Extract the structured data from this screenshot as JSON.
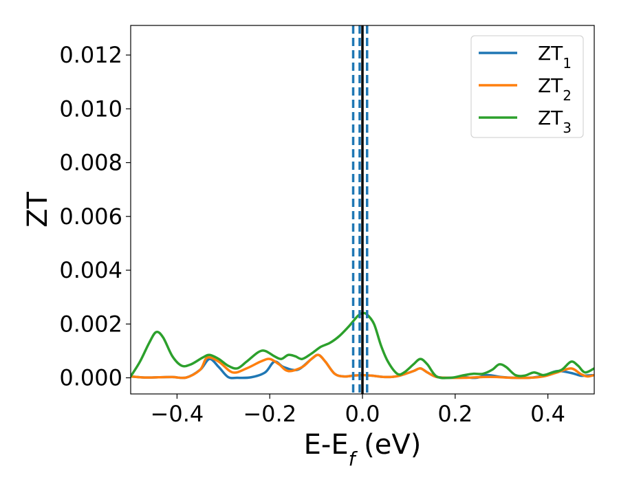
{
  "chart_data": {
    "type": "line",
    "title": "",
    "xlabel": "E-E",
    "xlabel_sub": "f",
    "xlabel_unit": " (eV)",
    "ylabel": "ZT",
    "xlim": [
      -0.5,
      0.5
    ],
    "ylim": [
      -0.0006,
      0.0131
    ],
    "xticks": [
      -0.4,
      -0.2,
      0.0,
      0.2,
      0.4
    ],
    "xtick_labels": [
      "−0.4",
      "−0.2",
      "0.0",
      "0.2",
      "0.4"
    ],
    "yticks": [
      0.0,
      0.002,
      0.004,
      0.006,
      0.008,
      0.01,
      0.012
    ],
    "ytick_labels": [
      "0.000",
      "0.002",
      "0.004",
      "0.006",
      "0.008",
      "0.010",
      "0.012"
    ],
    "grid": false,
    "legend_position": "top-right",
    "vlines": [
      {
        "x": 0.0,
        "style": "solid",
        "color": "#000000"
      },
      {
        "x": -0.02,
        "style": "dashed",
        "color": "#1f77b4"
      },
      {
        "x": -0.006,
        "style": "dashed",
        "color": "#1f77b4"
      },
      {
        "x": 0.01,
        "style": "dashed",
        "color": "#1f77b4"
      }
    ],
    "series": [
      {
        "name": "ZT",
        "name_sub": "1",
        "color": "#1f77b4",
        "points": [
          [
            -0.5,
            5e-05
          ],
          [
            -0.47,
            1e-05
          ],
          [
            -0.44,
            2e-05
          ],
          [
            -0.41,
            3e-05
          ],
          [
            -0.38,
            1e-05
          ],
          [
            -0.35,
            0.0003
          ],
          [
            -0.33,
            0.0007
          ],
          [
            -0.31,
            0.0004
          ],
          [
            -0.29,
            3e-05
          ],
          [
            -0.27,
            0.0
          ],
          [
            -0.24,
            2e-05
          ],
          [
            -0.21,
            0.0002
          ],
          [
            -0.19,
            0.0006
          ],
          [
            -0.17,
            0.0004
          ],
          [
            -0.14,
            0.0003
          ],
          [
            -0.11,
            0.0007
          ],
          [
            -0.095,
            0.00085
          ],
          [
            -0.08,
            0.0006
          ],
          [
            -0.06,
            0.00015
          ],
          [
            -0.04,
            5e-05
          ],
          [
            -0.02,
            8e-05
          ],
          [
            0.0,
            0.0001
          ],
          [
            0.02,
            8e-05
          ],
          [
            0.04,
            4e-05
          ],
          [
            0.06,
            3e-05
          ],
          [
            0.08,
            8e-05
          ],
          [
            0.11,
            0.00025
          ],
          [
            0.125,
            0.00035
          ],
          [
            0.14,
            0.0002
          ],
          [
            0.16,
            3e-05
          ],
          [
            0.19,
            0.0
          ],
          [
            0.22,
            2e-05
          ],
          [
            0.245,
            0.0
          ],
          [
            0.27,
            0.0001
          ],
          [
            0.3,
            3e-05
          ],
          [
            0.33,
            0.0
          ],
          [
            0.36,
            0.0
          ],
          [
            0.39,
            8e-05
          ],
          [
            0.42,
            0.00025
          ],
          [
            0.45,
            0.00018
          ],
          [
            0.47,
            8e-05
          ],
          [
            0.48,
            8e-05
          ],
          [
            0.5,
            0.0001
          ]
        ]
      },
      {
        "name": "ZT",
        "name_sub": "2",
        "color": "#ff7f0e",
        "points": [
          [
            -0.5,
            5e-05
          ],
          [
            -0.47,
            1e-05
          ],
          [
            -0.44,
            2e-05
          ],
          [
            -0.41,
            3e-05
          ],
          [
            -0.38,
            1e-05
          ],
          [
            -0.35,
            0.0003
          ],
          [
            -0.335,
            0.00075
          ],
          [
            -0.31,
            0.0006
          ],
          [
            -0.28,
            0.0002
          ],
          [
            -0.25,
            0.00035
          ],
          [
            -0.22,
            0.0006
          ],
          [
            -0.2,
            0.0007
          ],
          [
            -0.18,
            0.0005
          ],
          [
            -0.16,
            0.00025
          ],
          [
            -0.13,
            0.0004
          ],
          [
            -0.11,
            0.0007
          ],
          [
            -0.095,
            0.00085
          ],
          [
            -0.08,
            0.0006
          ],
          [
            -0.06,
            0.00015
          ],
          [
            -0.04,
            5e-05
          ],
          [
            -0.02,
            8e-05
          ],
          [
            0.0,
            0.0001
          ],
          [
            0.02,
            8e-05
          ],
          [
            0.04,
            4e-05
          ],
          [
            0.06,
            3e-05
          ],
          [
            0.08,
            8e-05
          ],
          [
            0.11,
            0.00025
          ],
          [
            0.125,
            0.00035
          ],
          [
            0.14,
            0.0002
          ],
          [
            0.16,
            3e-05
          ],
          [
            0.19,
            0.0
          ],
          [
            0.22,
            0.0
          ],
          [
            0.26,
            3e-05
          ],
          [
            0.29,
            3e-05
          ],
          [
            0.32,
            0.0
          ],
          [
            0.36,
            0.0
          ],
          [
            0.39,
            5e-05
          ],
          [
            0.42,
            0.0002
          ],
          [
            0.45,
            0.00035
          ],
          [
            0.47,
            0.00015
          ],
          [
            0.485,
            5e-05
          ],
          [
            0.5,
            0.0001
          ]
        ]
      },
      {
        "name": "ZT",
        "name_sub": "3",
        "color": "#2ca02c",
        "points": [
          [
            -0.5,
            5e-05
          ],
          [
            -0.48,
            0.0006
          ],
          [
            -0.46,
            0.0013
          ],
          [
            -0.445,
            0.0017
          ],
          [
            -0.43,
            0.0015
          ],
          [
            -0.41,
            0.0008
          ],
          [
            -0.39,
            0.00045
          ],
          [
            -0.37,
            0.0005
          ],
          [
            -0.345,
            0.00075
          ],
          [
            -0.33,
            0.00085
          ],
          [
            -0.31,
            0.0007
          ],
          [
            -0.29,
            0.00045
          ],
          [
            -0.27,
            0.00035
          ],
          [
            -0.25,
            0.0006
          ],
          [
            -0.225,
            0.00095
          ],
          [
            -0.21,
            0.001
          ],
          [
            -0.19,
            0.0008
          ],
          [
            -0.175,
            0.0007
          ],
          [
            -0.16,
            0.00085
          ],
          [
            -0.145,
            0.0008
          ],
          [
            -0.13,
            0.0007
          ],
          [
            -0.11,
            0.0009
          ],
          [
            -0.09,
            0.00115
          ],
          [
            -0.07,
            0.0013
          ],
          [
            -0.05,
            0.00155
          ],
          [
            -0.03,
            0.0019
          ],
          [
            -0.01,
            0.0023
          ],
          [
            0.0,
            0.0024
          ],
          [
            0.01,
            0.00235
          ],
          [
            0.025,
            0.002
          ],
          [
            0.04,
            0.0012
          ],
          [
            0.055,
            0.0006
          ],
          [
            0.075,
            0.00015
          ],
          [
            0.09,
            0.0002
          ],
          [
            0.11,
            0.0005
          ],
          [
            0.125,
            0.0007
          ],
          [
            0.14,
            0.0005
          ],
          [
            0.16,
            5e-05
          ],
          [
            0.19,
            0.0
          ],
          [
            0.22,
            0.0001
          ],
          [
            0.24,
            0.00015
          ],
          [
            0.26,
            0.00015
          ],
          [
            0.28,
            0.0003
          ],
          [
            0.295,
            0.0005
          ],
          [
            0.31,
            0.0004
          ],
          [
            0.33,
            0.0001
          ],
          [
            0.35,
            8e-05
          ],
          [
            0.37,
            0.0002
          ],
          [
            0.39,
            0.0001
          ],
          [
            0.41,
            0.0002
          ],
          [
            0.43,
            0.0003
          ],
          [
            0.45,
            0.0006
          ],
          [
            0.465,
            0.00045
          ],
          [
            0.48,
            0.0002
          ],
          [
            0.5,
            0.00035
          ]
        ]
      }
    ]
  }
}
